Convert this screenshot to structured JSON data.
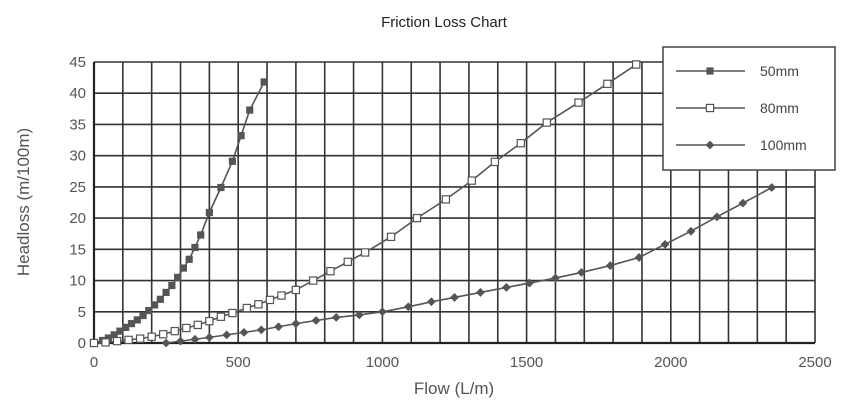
{
  "chart_data": {
    "type": "line",
    "title": "Friction Loss Chart",
    "xlabel": "Flow (L/m)",
    "ylabel": "Headloss (m/100m)",
    "xlim": [
      0,
      2500
    ],
    "ylim": [
      0,
      45
    ],
    "xticks": [
      0,
      500,
      1000,
      1500,
      2000,
      2500
    ],
    "yticks": [
      0,
      5,
      10,
      15,
      20,
      25,
      30,
      35,
      40,
      45
    ],
    "grid": true,
    "legend_position": "top-right",
    "series": [
      {
        "name": "50mm",
        "marker": "square-filled",
        "color": "#555555",
        "x": [
          0,
          30,
          50,
          70,
          90,
          110,
          130,
          150,
          170,
          190,
          210,
          230,
          250,
          270,
          290,
          310,
          330,
          350,
          370,
          400,
          440,
          480,
          510,
          540,
          590
        ],
        "y": [
          0,
          0.4,
          0.8,
          1.3,
          1.9,
          2.5,
          3.1,
          3.7,
          4.4,
          5.2,
          6.1,
          7.0,
          8.1,
          9.2,
          10.5,
          12.0,
          13.4,
          15.3,
          17.3,
          20.9,
          24.9,
          29.1,
          33.2,
          37.3,
          41.8
        ]
      },
      {
        "name": "80mm",
        "marker": "square-open",
        "color": "#555555",
        "x": [
          0,
          40,
          80,
          120,
          160,
          200,
          240,
          280,
          320,
          360,
          400,
          440,
          480,
          530,
          570,
          610,
          650,
          700,
          760,
          820,
          880,
          940,
          1030,
          1120,
          1220,
          1310,
          1390,
          1480,
          1570,
          1680,
          1780,
          1880
        ],
        "y": [
          0,
          0.1,
          0.3,
          0.5,
          0.7,
          1.0,
          1.4,
          1.9,
          2.4,
          2.9,
          3.5,
          4.2,
          4.8,
          5.6,
          6.2,
          6.9,
          7.6,
          8.5,
          10.0,
          11.5,
          13.0,
          14.5,
          17.0,
          20.0,
          23.0,
          26.0,
          29.0,
          32.0,
          35.3,
          38.5,
          41.5,
          44.6
        ]
      },
      {
        "name": "100mm",
        "marker": "diamond-filled",
        "color": "#555555",
        "x": [
          250,
          300,
          350,
          400,
          460,
          520,
          580,
          640,
          700,
          770,
          840,
          920,
          1000,
          1090,
          1170,
          1250,
          1340,
          1430,
          1510,
          1600,
          1690,
          1790,
          1890,
          1980,
          2070,
          2160,
          2250,
          2350
        ],
        "y": [
          0,
          0.3,
          0.6,
          0.9,
          1.3,
          1.7,
          2.1,
          2.6,
          3.1,
          3.6,
          4.1,
          4.5,
          5.0,
          5.8,
          6.6,
          7.3,
          8.1,
          8.9,
          9.6,
          10.4,
          11.3,
          12.4,
          13.7,
          15.8,
          17.9,
          20.2,
          22.4,
          24.9
        ]
      }
    ]
  }
}
